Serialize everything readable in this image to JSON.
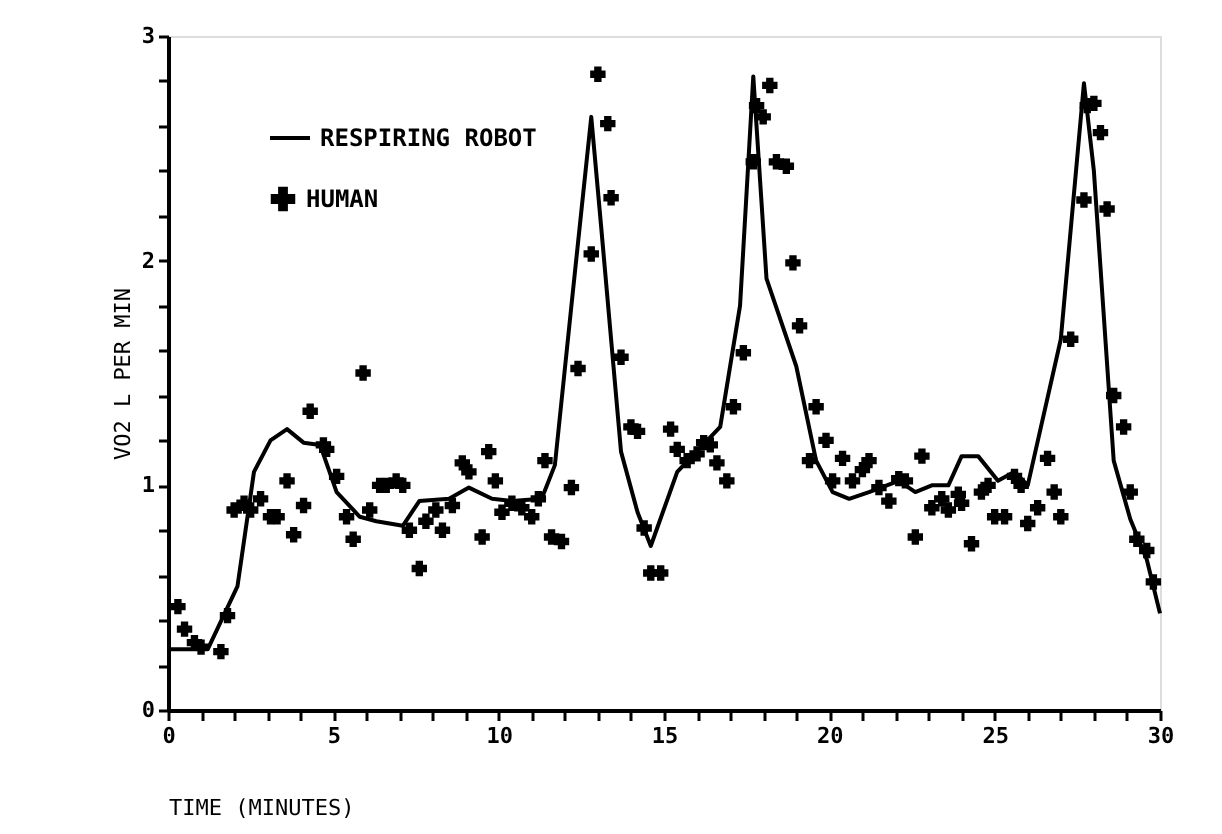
{
  "chart_data": {
    "type": "line",
    "xlabel": "TIME (MINUTES)",
    "ylabel": "VO2 L PER MIN",
    "xlim": [
      0,
      30
    ],
    "ylim": [
      0,
      3
    ],
    "xticks": [
      0,
      {
        "value": 1,
        "label": null
      },
      {
        "value": 2,
        "label": null
      },
      {
        "value": 3,
        "label": null
      },
      {
        "value": 4,
        "label": null
      },
      5,
      {
        "value": 6,
        "label": null
      },
      {
        "value": 7,
        "label": null
      },
      {
        "value": 8,
        "label": null
      },
      {
        "value": 9,
        "label": null
      },
      10,
      {
        "value": 11,
        "label": null
      },
      {
        "value": 12,
        "label": null
      },
      {
        "value": 13,
        "label": null
      },
      {
        "value": 14,
        "label": null
      },
      15,
      {
        "value": 16,
        "label": null
      },
      {
        "value": 17,
        "label": null
      },
      {
        "value": 18,
        "label": null
      },
      {
        "value": 19,
        "label": null
      },
      20,
      {
        "value": 21,
        "label": null
      },
      {
        "value": 22,
        "label": null
      },
      {
        "value": 23,
        "label": null
      },
      {
        "value": 24,
        "label": null
      },
      25,
      {
        "value": 26,
        "label": null
      },
      {
        "value": 27,
        "label": null
      },
      {
        "value": 28,
        "label": null
      },
      {
        "value": 29,
        "label": null
      },
      30
    ],
    "yticks": [
      0,
      {
        "value": 0.2,
        "label": null
      },
      {
        "value": 0.4,
        "label": null
      },
      {
        "value": 0.6,
        "label": null
      },
      {
        "value": 0.8,
        "label": null
      },
      1,
      {
        "value": 1.2,
        "label": null
      },
      {
        "value": 1.4,
        "label": null
      },
      {
        "value": 1.6,
        "label": null
      },
      {
        "value": 1.8,
        "label": null
      },
      2,
      {
        "value": 2.2,
        "label": null
      },
      {
        "value": 2.4,
        "label": null
      },
      {
        "value": 2.6,
        "label": null
      },
      {
        "value": 2.8,
        "label": null
      },
      3
    ],
    "grid": false,
    "legend": "top left",
    "series": [
      {
        "name": "RESPIRING ROBOT",
        "type": "line",
        "color": "#000000",
        "marker": "none",
        "line_style": "solid",
        "x": [
          0,
          1.2,
          2.1,
          2.6,
          3.1,
          3.6,
          4.1,
          4.6,
          5.1,
          5.8,
          6.3,
          7.1,
          7.6,
          8.5,
          9.1,
          9.8,
          10.4,
          11.3,
          11.7,
          12.2,
          12.8,
          13.1,
          13.7,
          14.2,
          14.6,
          15.4,
          16.7,
          17.3,
          17.7,
          18.1,
          19.0,
          19.6,
          20.1,
          20.6,
          21.2,
          22.1,
          22.6,
          23.1,
          23.6,
          24.0,
          24.5,
          25.1,
          25.6,
          26.0,
          26.4,
          27.0,
          27.7,
          28.0,
          28.6,
          29.1,
          29.6,
          30.0
        ],
        "values": [
          0.27,
          0.27,
          0.55,
          1.06,
          1.2,
          1.25,
          1.19,
          1.18,
          0.97,
          0.86,
          0.84,
          0.82,
          0.93,
          0.94,
          0.99,
          0.94,
          0.93,
          0.94,
          1.09,
          1.8,
          2.64,
          2.15,
          1.15,
          0.88,
          0.73,
          1.06,
          1.26,
          1.8,
          2.82,
          1.92,
          1.53,
          1.11,
          0.97,
          0.94,
          0.97,
          1.02,
          0.97,
          1.0,
          1.0,
          1.13,
          1.13,
          1.02,
          1.06,
          1.0,
          1.26,
          1.65,
          2.79,
          2.4,
          1.11,
          0.85,
          0.67,
          0.43
        ]
      },
      {
        "name": "HUMAN",
        "type": "scatter",
        "color": "#000000",
        "marker": "cross",
        "x": [
          0.3,
          0.5,
          0.8,
          1.0,
          1.6,
          1.8,
          2.0,
          2.3,
          2.5,
          2.8,
          3.1,
          3.3,
          3.6,
          3.8,
          4.1,
          4.3,
          4.7,
          4.8,
          5.1,
          5.4,
          5.6,
          5.9,
          6.1,
          6.4,
          6.6,
          6.9,
          7.1,
          7.3,
          7.6,
          7.8,
          8.1,
          8.3,
          8.6,
          8.9,
          9.1,
          9.5,
          9.7,
          9.9,
          10.1,
          10.4,
          10.7,
          11.0,
          11.2,
          11.4,
          11.6,
          11.9,
          12.2,
          12.4,
          12.8,
          13.0,
          13.3,
          13.4,
          13.7,
          14.0,
          14.2,
          14.4,
          14.6,
          14.9,
          15.2,
          15.4,
          15.7,
          16.0,
          16.2,
          16.4,
          16.6,
          16.9,
          17.1,
          17.4,
          17.7,
          17.8,
          18.0,
          18.2,
          18.4,
          18.7,
          18.9,
          19.1,
          19.4,
          19.6,
          19.9,
          20.1,
          20.4,
          20.7,
          21.0,
          21.2,
          21.5,
          21.8,
          22.1,
          22.3,
          22.6,
          22.8,
          23.1,
          23.4,
          23.6,
          23.9,
          24.0,
          24.3,
          24.6,
          24.8,
          25.0,
          25.3,
          25.6,
          25.8,
          26.0,
          26.3,
          26.6,
          26.8,
          27.0,
          27.3,
          27.7,
          27.8,
          28.0,
          28.2,
          28.4,
          28.6,
          28.9,
          29.1,
          29.3,
          29.6,
          29.8
        ],
        "values": [
          0.46,
          0.36,
          0.3,
          0.28,
          0.26,
          0.42,
          0.89,
          0.92,
          0.89,
          0.94,
          0.86,
          0.86,
          1.02,
          0.78,
          0.91,
          1.33,
          1.18,
          1.16,
          1.04,
          0.86,
          0.76,
          1.5,
          0.89,
          1.0,
          1.0,
          1.02,
          1.0,
          0.8,
          0.63,
          0.84,
          0.89,
          0.8,
          0.91,
          1.1,
          1.06,
          0.77,
          1.15,
          1.02,
          0.88,
          0.92,
          0.9,
          0.86,
          0.94,
          1.11,
          0.77,
          0.75,
          0.99,
          1.52,
          2.03,
          2.83,
          2.61,
          2.28,
          1.57,
          1.26,
          1.24,
          0.81,
          0.61,
          0.61,
          1.25,
          1.16,
          1.11,
          1.14,
          1.19,
          1.18,
          1.1,
          1.02,
          1.35,
          1.59,
          2.44,
          2.69,
          2.64,
          2.78,
          2.44,
          2.42,
          1.99,
          1.71,
          1.11,
          1.35,
          1.2,
          1.02,
          1.12,
          1.02,
          1.07,
          1.11,
          0.99,
          0.93,
          1.03,
          1.02,
          0.77,
          1.13,
          0.9,
          0.94,
          0.89,
          0.96,
          0.92,
          0.74,
          0.97,
          1.0,
          0.86,
          0.86,
          1.04,
          1.0,
          0.83,
          0.9,
          1.12,
          0.97,
          0.86,
          1.65,
          2.27,
          2.69,
          2.7,
          2.57,
          2.23,
          1.4,
          1.26,
          0.97,
          0.76,
          0.71,
          0.57
        ]
      }
    ]
  }
}
